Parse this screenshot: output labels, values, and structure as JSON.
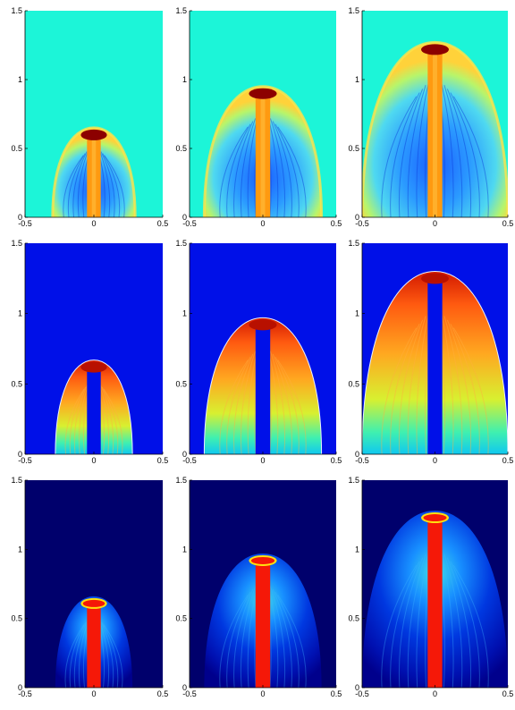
{
  "chart_data": {
    "type": "heatmap",
    "layout": "3x3 grid of jet-colormap simulation snapshots",
    "xlim": [
      -0.5,
      0.5
    ],
    "ylim": [
      0,
      1.5
    ],
    "xticks": [
      -0.5,
      0,
      0.5
    ],
    "yticks": [
      0,
      0.5,
      1,
      1.5
    ],
    "xtick_labels": [
      "-0.5",
      "0",
      "0.5"
    ],
    "ytick_labels": [
      "0",
      "0.5",
      "1",
      "1.5"
    ],
    "colormap": "jet",
    "grid": false,
    "legend": "none",
    "rows": [
      {
        "background": "#1cf5d8",
        "jet": "#ff9a10",
        "head": "#8c0000",
        "style": "cyan-ambient",
        "panels": [
          {
            "front_height": 0.65,
            "half_width": 0.3
          },
          {
            "front_height": 0.95,
            "half_width": 0.4
          },
          {
            "front_height": 1.27,
            "half_width": 0.5
          }
        ]
      },
      {
        "background": "#0010e8",
        "jet": "#0010e8",
        "head": "#b81000",
        "style": "blue-ambient",
        "panels": [
          {
            "front_height": 0.67,
            "half_width": 0.28
          },
          {
            "front_height": 0.97,
            "half_width": 0.4
          },
          {
            "front_height": 1.3,
            "half_width": 0.5
          }
        ]
      },
      {
        "background": "#00006c",
        "jet": "#f51808",
        "head": "#ffe010",
        "style": "dark-ambient",
        "panels": [
          {
            "front_height": 0.66,
            "half_width": 0.28
          },
          {
            "front_height": 0.97,
            "half_width": 0.4
          },
          {
            "front_height": 1.28,
            "half_width": 0.5
          }
        ]
      }
    ],
    "jet_half_width": 0.05
  }
}
